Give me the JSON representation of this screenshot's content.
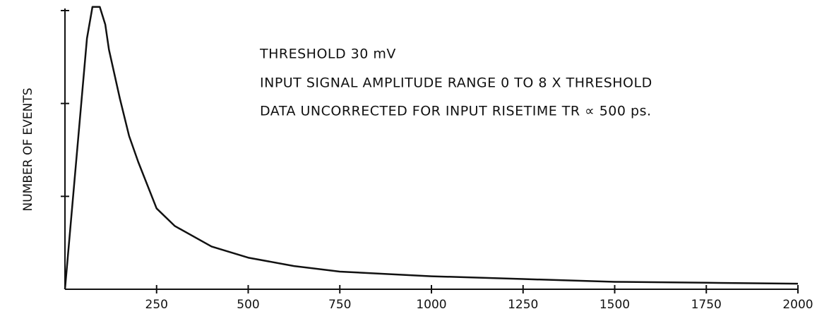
{
  "chart_data": {
    "type": "line",
    "y_label": "NUMBER OF EVENTS",
    "annotations": [
      "THRESHOLD 30 mV",
      "INPUT SIGNAL AMPLITUDE RANGE 0 TO 8 X THRESHOLD",
      "DATA UNCORRECTED FOR INPUT RISETIME TR ∝ 500 ps."
    ],
    "x": [
      0,
      60,
      75,
      95,
      110,
      120,
      150,
      175,
      200,
      250,
      300,
      400,
      500,
      625,
      750,
      1000,
      1250,
      1500,
      1750,
      2000
    ],
    "series": [
      {
        "color": "#111111",
        "values": [
          0,
          2.7,
          3.04,
          3.04,
          2.85,
          2.58,
          2.05,
          1.65,
          1.37,
          0.87,
          0.68,
          0.46,
          0.34,
          0.25,
          0.19,
          0.14,
          0.11,
          0.08,
          0.07,
          0.06
        ]
      }
    ],
    "xlim": [
      0,
      2000
    ],
    "xticks": [
      250,
      500,
      750,
      1000,
      1250,
      1500,
      1750,
      2000
    ],
    "ylim": [
      0,
      3
    ],
    "yticks": [
      1,
      2,
      3
    ],
    "ytick_labels": false,
    "grid": false
  }
}
